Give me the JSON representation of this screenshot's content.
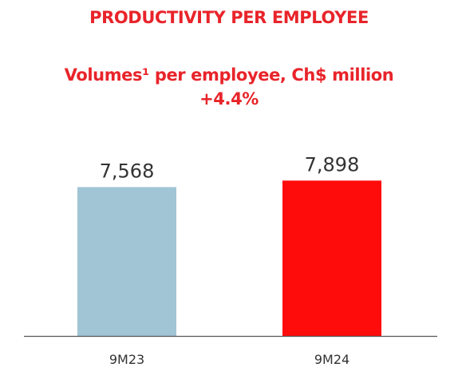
{
  "title": "PRODUCTIVITY PER EMPLOYEE",
  "subtitle_line1": "Volumes¹ per employee, Ch$ million",
  "subtitle_line2": "+4.4%",
  "colors": {
    "title": "#e8242a",
    "bar_9M23": "#a1c5d4",
    "bar_9M24": "#fe0c0c",
    "axis": "#555555",
    "text": "#333333"
  },
  "chart_data": {
    "type": "bar",
    "title": "PRODUCTIVITY PER EMPLOYEE",
    "subtitle": "Volumes¹ per employee, Ch$ million",
    "annotation": "+4.4%",
    "categories": [
      "9M23",
      "9M24"
    ],
    "values": [
      7568,
      7898
    ],
    "value_labels": [
      "7,568",
      "7,898"
    ],
    "xlabel": "",
    "ylabel": "",
    "ylim": [
      0,
      8000
    ],
    "grid": false,
    "legend": "none"
  }
}
